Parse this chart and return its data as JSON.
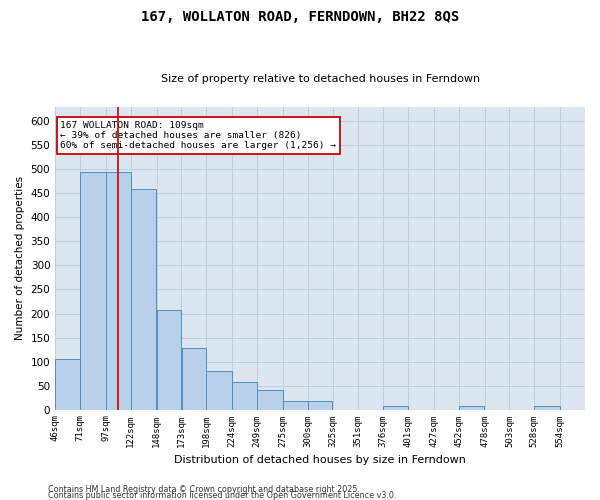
{
  "title": "167, WOLLATON ROAD, FERNDOWN, BH22 8QS",
  "subtitle": "Size of property relative to detached houses in Ferndown",
  "xlabel": "Distribution of detached houses by size in Ferndown",
  "ylabel": "Number of detached properties",
  "footnote1": "Contains HM Land Registry data © Crown copyright and database right 2025.",
  "footnote2": "Contains public sector information licensed under the Open Government Licence v3.0.",
  "annotation_title": "167 WOLLATON ROAD: 109sqm",
  "annotation_line1": "← 39% of detached houses are smaller (826)",
  "annotation_line2": "60% of semi-detached houses are larger (1,256) →",
  "bar_lefts": [
    46,
    71,
    97,
    122,
    148,
    173,
    198,
    224,
    249,
    275,
    300,
    325,
    351,
    376,
    401,
    427,
    452,
    478,
    503,
    528
  ],
  "bar_widths": [
    25,
    26,
    25,
    26,
    25,
    25,
    26,
    25,
    26,
    25,
    25,
    26,
    25,
    25,
    26,
    25,
    26,
    25,
    25,
    26
  ],
  "bar_heights": [
    105,
    495,
    495,
    460,
    207,
    128,
    80,
    58,
    40,
    18,
    18,
    0,
    0,
    8,
    0,
    0,
    8,
    0,
    0,
    8
  ],
  "bar_color": "#b8d0ea",
  "bar_edgecolor": "#4f8fbf",
  "vline_color": "#cc0000",
  "grid_color": "#c0cfe0",
  "bg_color": "#dce6f0",
  "annotation_box_edgecolor": "#cc0000",
  "ylim": [
    0,
    630
  ],
  "yticks": [
    0,
    50,
    100,
    150,
    200,
    250,
    300,
    350,
    400,
    450,
    500,
    550,
    600
  ],
  "xlim_left": 46,
  "xlim_right": 579,
  "tick_labels": [
    "46sqm",
    "71sqm",
    "97sqm",
    "122sqm",
    "148sqm",
    "173sqm",
    "198sqm",
    "224sqm",
    "249sqm",
    "275sqm",
    "300sqm",
    "325sqm",
    "351sqm",
    "376sqm",
    "401sqm",
    "427sqm",
    "452sqm",
    "478sqm",
    "503sqm",
    "528sqm",
    "554sqm"
  ],
  "tick_positions": [
    46,
    71,
    97,
    122,
    148,
    173,
    198,
    224,
    249,
    275,
    300,
    325,
    351,
    376,
    401,
    427,
    452,
    478,
    503,
    528,
    554
  ],
  "property_line_x": 109
}
